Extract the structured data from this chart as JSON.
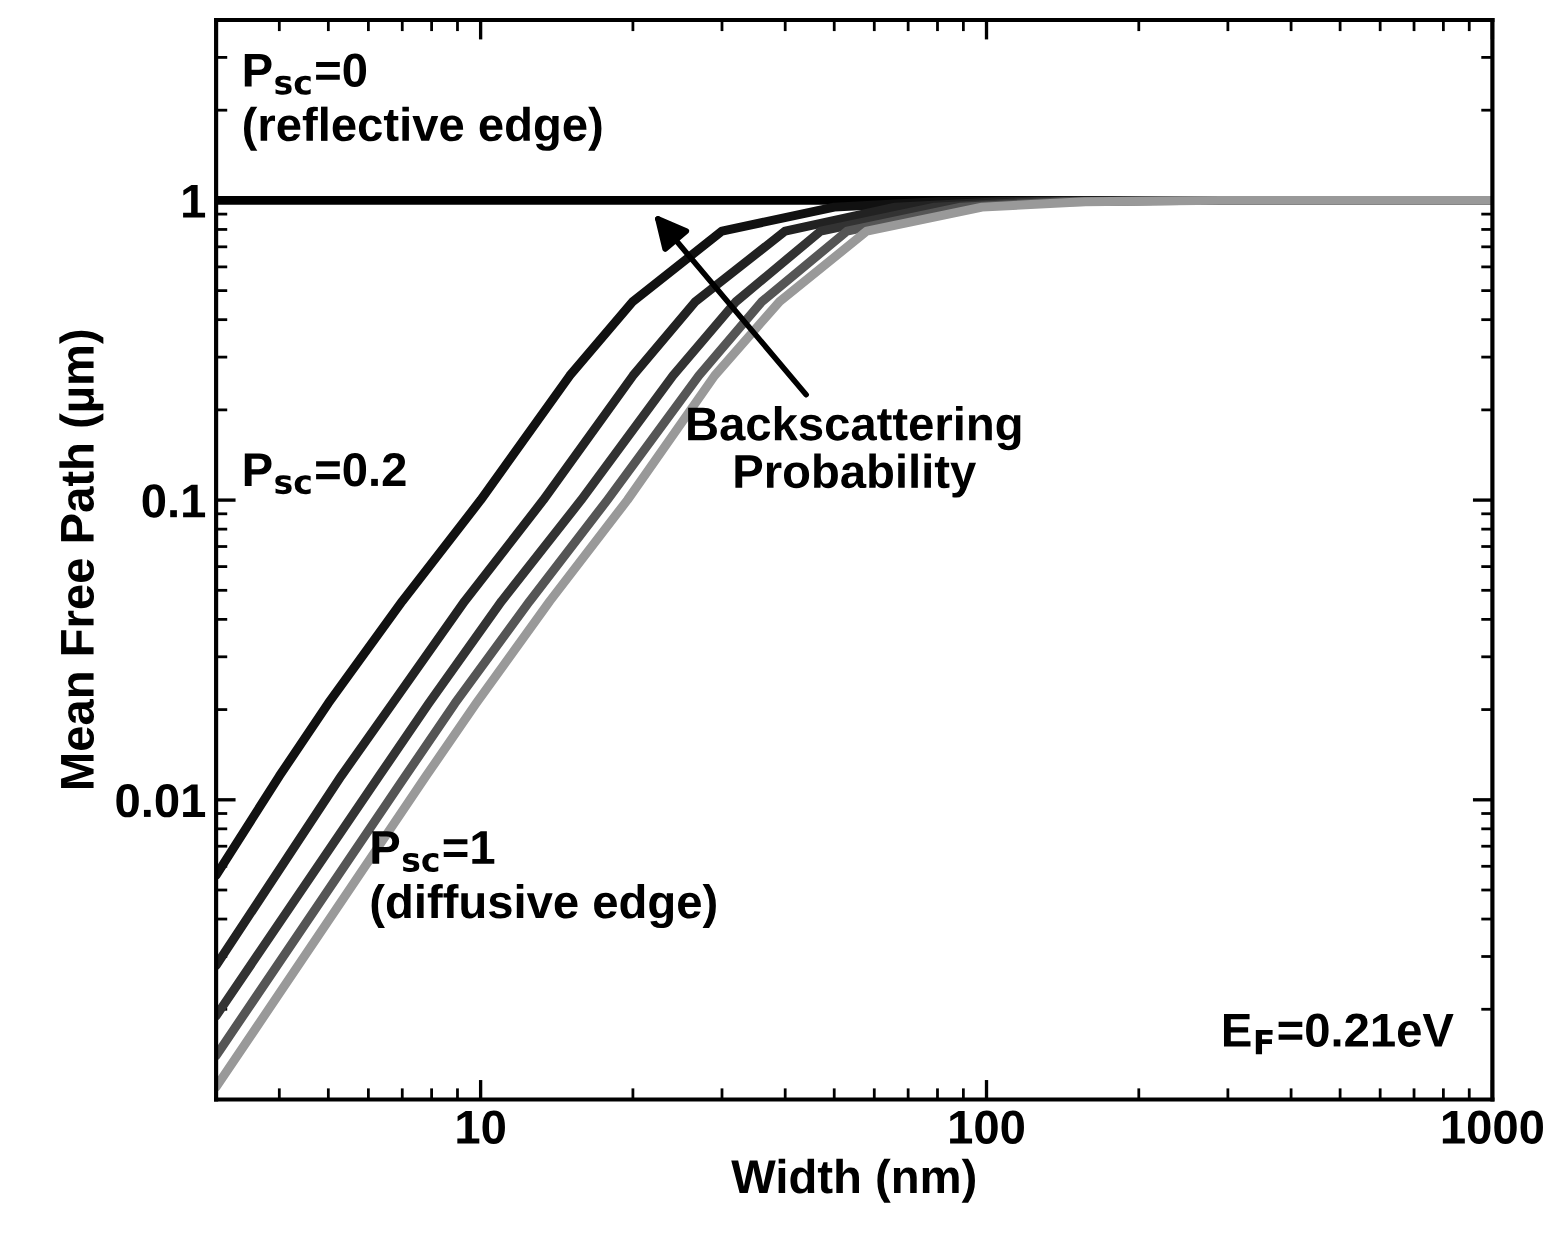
{
  "chart_data": {
    "type": "line",
    "xlabel": "Width (nm)",
    "ylabel": "Mean Free Path (µm)",
    "log": "xy",
    "xlim": [
      3,
      1000
    ],
    "ylim": [
      0.001,
      4
    ],
    "xticks": [
      10,
      100,
      1000
    ],
    "yticks": [
      {
        "value": 0.01,
        "label": "0.01"
      },
      {
        "value": 0.1,
        "label": "0.1"
      },
      {
        "value": 1,
        "label": "1"
      }
    ],
    "grid": false,
    "marker": "none",
    "line_style": "solid",
    "series": [
      {
        "color": "#000000",
        "x": [
          3,
          1000
        ],
        "values": [
          1,
          1
        ]
      },
      {
        "color": "#111111",
        "x": [
          3,
          4,
          5,
          7,
          10,
          15,
          20,
          30,
          50,
          80,
          150,
          1000
        ],
        "values": [
          0.0056,
          0.012,
          0.021,
          0.046,
          0.1,
          0.26,
          0.46,
          0.79,
          0.95,
          0.99,
          1,
          1
        ]
      },
      {
        "color": "#222222",
        "x": [
          3,
          5.3,
          6.7,
          9.3,
          13.3,
          20,
          26.6,
          40,
          66,
          106,
          200,
          1000
        ],
        "values": [
          0.0028,
          0.012,
          0.021,
          0.046,
          0.1,
          0.26,
          0.46,
          0.79,
          0.95,
          0.99,
          1,
          1
        ]
      },
      {
        "color": "#333333",
        "x": [
          3,
          6.3,
          7.9,
          11,
          15.8,
          24,
          32,
          47,
          79,
          126,
          240,
          1000
        ],
        "values": [
          0.0019,
          0.012,
          0.021,
          0.046,
          0.1,
          0.26,
          0.46,
          0.79,
          0.95,
          0.99,
          1,
          1
        ]
      },
      {
        "color": "#555555",
        "x": [
          3,
          7.1,
          8.9,
          12.5,
          17.8,
          27,
          36,
          53,
          89,
          142,
          270,
          1000
        ],
        "values": [
          0.0014,
          0.012,
          0.021,
          0.046,
          0.1,
          0.26,
          0.46,
          0.79,
          0.95,
          0.99,
          1,
          1
        ]
      },
      {
        "color": "#999999",
        "x": [
          3,
          7.8,
          9.8,
          13.7,
          19.5,
          29,
          39,
          58,
          98,
          156,
          290,
          1000
        ],
        "values": [
          0.0011,
          0.012,
          0.021,
          0.046,
          0.1,
          0.26,
          0.46,
          0.79,
          0.95,
          0.99,
          1,
          1
        ]
      }
    ],
    "annotations": [
      "P$_{sc}$=0\n(reflective edge)",
      "P$_{sc}$=0.2",
      "P$_{sc}$=1\n(diffusive edge)",
      {
        "text": "Backscattering\nProbability",
        "x": 22,
        "y": 0.9
      },
      "E$_{F}$=0.21eV"
    ]
  }
}
